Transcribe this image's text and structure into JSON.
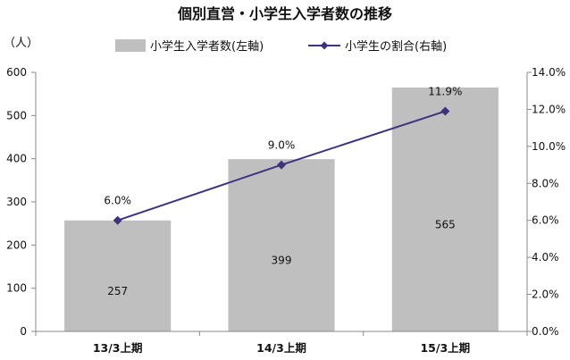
{
  "chart_data": {
    "type": "bar",
    "title": "個別直営・小学生入学者数の推移",
    "left_axis_unit": "（人）",
    "categories": [
      "13/3上期",
      "14/3上期",
      "15/3上期"
    ],
    "series": [
      {
        "name": "小学生入学者数(左軸)",
        "type": "bar",
        "axis": "left",
        "color": "#bfbfbf",
        "values": [
          257,
          399,
          565
        ],
        "value_labels": [
          "257",
          "399",
          "565"
        ]
      },
      {
        "name": "小学生の割合(右軸)",
        "type": "line",
        "axis": "right",
        "color": "#3f3380",
        "marker": "diamond",
        "values": [
          6.0,
          9.0,
          11.9
        ],
        "value_labels": [
          "6.0%",
          "9.0%",
          "11.9%"
        ]
      }
    ],
    "y_left": {
      "min": 0,
      "max": 600,
      "step": 100,
      "tick_labels": [
        "0",
        "100",
        "200",
        "300",
        "400",
        "500",
        "600"
      ]
    },
    "y_right": {
      "min": 0,
      "max": 14,
      "step": 2,
      "tick_labels": [
        "0.0%",
        "2.0%",
        "4.0%",
        "6.0%",
        "8.0%",
        "10.0%",
        "12.0%",
        "14.0%"
      ]
    },
    "grid": false,
    "legend_position": "top"
  }
}
